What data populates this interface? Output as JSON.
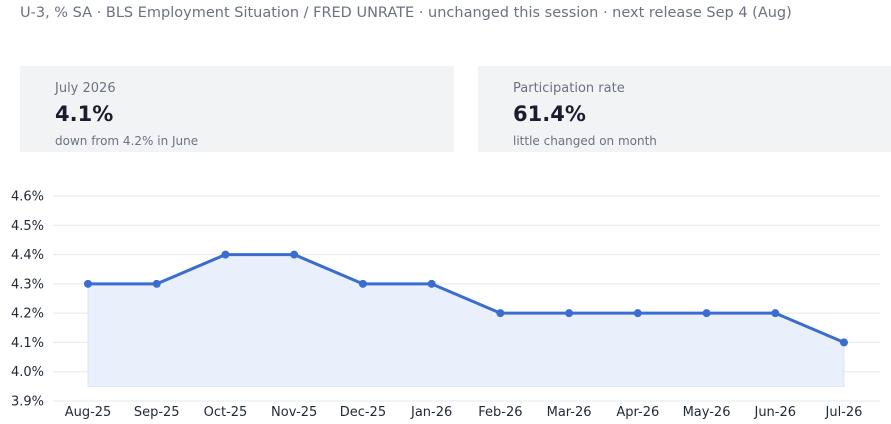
{
  "header": {
    "subtitle": "U-3, % SA · BLS Employment Situation / FRED UNRATE · unchanged this session · next release Sep 4 (Aug)"
  },
  "cards": [
    {
      "label": "July 2026",
      "value": "4.1%",
      "note": "down from 4.2% in June"
    },
    {
      "label": "Participation rate",
      "value": "61.4%",
      "note": "little changed on month"
    }
  ],
  "colors": {
    "line": "#3b6ccf",
    "fill": "#eaf0fb",
    "grid": "#e5e7eb",
    "card_bg": "#f2f3f5"
  },
  "chart_data": {
    "type": "area",
    "categories": [
      "Aug-25",
      "Sep-25",
      "Oct-25",
      "Nov-25",
      "Dec-25",
      "Jan-26",
      "Feb-26",
      "Mar-26",
      "Apr-26",
      "May-26",
      "Jun-26",
      "Jul-26"
    ],
    "series": [
      {
        "values": [
          4.3,
          4.3,
          4.4,
          4.4,
          4.3,
          4.3,
          4.2,
          4.2,
          4.2,
          4.2,
          4.2,
          4.1
        ]
      }
    ],
    "yticks": [
      "3.9%",
      "4.0%",
      "4.1%",
      "4.2%",
      "4.3%",
      "4.4%",
      "4.5%",
      "4.6%"
    ],
    "ylim": [
      3.9,
      4.6
    ],
    "area_baseline": 3.95,
    "grid": true
  }
}
